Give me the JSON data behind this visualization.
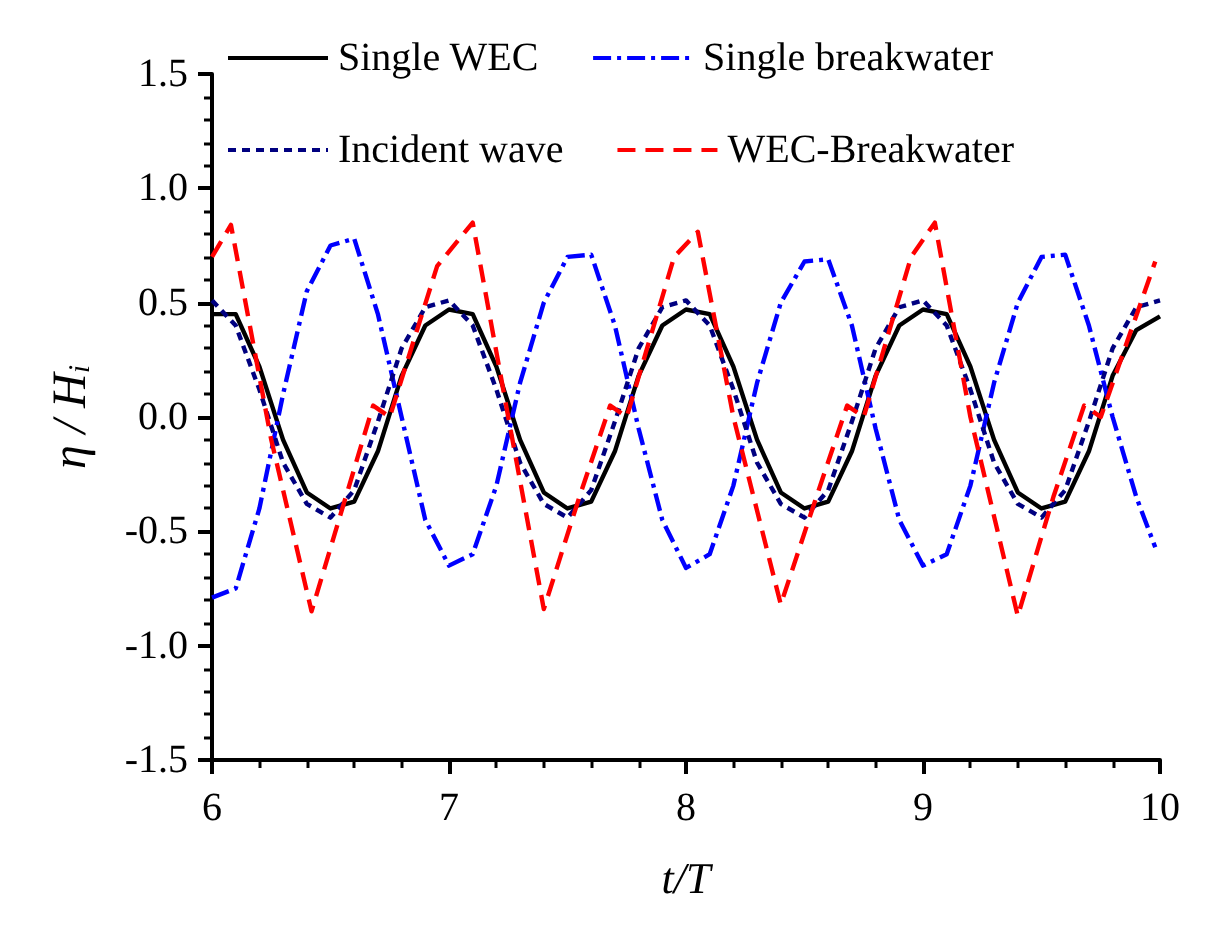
{
  "chart_data": {
    "type": "line",
    "xlabel": "t/T",
    "ylabel": "η / H$_{i}$",
    "xlim": [
      6,
      10
    ],
    "xticks": [
      6,
      7,
      8,
      9,
      10
    ],
    "ylim": [
      -1.5,
      1.5
    ],
    "yticks": [
      -1.5,
      {
        "value": -1,
        "label": "-1.0"
      },
      -0.5,
      {
        "value": 0,
        "label": "0.0"
      },
      0.5,
      {
        "value": 1,
        "label": "1.0"
      },
      1.5
    ],
    "grid": false,
    "legend": "top",
    "marker": "none",
    "series": [
      {
        "name": "Single WEC",
        "color": "#000000",
        "line_style": "solid",
        "x": [
          6.0,
          6.1,
          6.2,
          6.3,
          6.4,
          6.5,
          6.6,
          6.7,
          6.8,
          6.9,
          7.0,
          7.1,
          7.2,
          7.3,
          7.4,
          7.5,
          7.6,
          7.7,
          7.8,
          7.9,
          8.0,
          8.1,
          8.2,
          8.3,
          8.4,
          8.5,
          8.6,
          8.7,
          8.8,
          8.9,
          9.0,
          9.1,
          9.2,
          9.3,
          9.4,
          9.5,
          9.6,
          9.7,
          9.8,
          9.9,
          10.0
        ],
        "values": [
          0.45,
          0.45,
          0.22,
          -0.1,
          -0.33,
          -0.4,
          -0.37,
          -0.15,
          0.18,
          0.4,
          0.47,
          0.45,
          0.22,
          -0.1,
          -0.33,
          -0.4,
          -0.37,
          -0.15,
          0.18,
          0.4,
          0.47,
          0.45,
          0.22,
          -0.1,
          -0.33,
          -0.4,
          -0.37,
          -0.15,
          0.18,
          0.4,
          0.47,
          0.45,
          0.22,
          -0.1,
          -0.33,
          -0.4,
          -0.37,
          -0.15,
          0.18,
          0.38,
          0.44
        ]
      },
      {
        "name": "Single breakwater",
        "color": "#0000ff",
        "line_style": "dashdot",
        "x": [
          6.0,
          6.1,
          6.2,
          6.3,
          6.4,
          6.5,
          6.6,
          6.7,
          6.8,
          6.9,
          7.0,
          7.1,
          7.2,
          7.3,
          7.4,
          7.5,
          7.6,
          7.7,
          7.8,
          7.9,
          8.0,
          8.1,
          8.2,
          8.3,
          8.4,
          8.5,
          8.6,
          8.7,
          8.8,
          8.9,
          9.0,
          9.1,
          9.2,
          9.3,
          9.4,
          9.5,
          9.6,
          9.7,
          9.8,
          9.9,
          9.98
        ],
        "values": [
          -0.79,
          -0.75,
          -0.4,
          0.1,
          0.55,
          0.75,
          0.78,
          0.45,
          0.0,
          -0.45,
          -0.65,
          -0.6,
          -0.3,
          0.15,
          0.5,
          0.7,
          0.71,
          0.4,
          -0.05,
          -0.45,
          -0.66,
          -0.6,
          -0.3,
          0.15,
          0.5,
          0.68,
          0.69,
          0.4,
          -0.05,
          -0.45,
          -0.65,
          -0.6,
          -0.3,
          0.15,
          0.5,
          0.7,
          0.71,
          0.4,
          0.0,
          -0.35,
          -0.57
        ]
      },
      {
        "name": "Incident wave",
        "color": "#000080",
        "line_style": "dotted",
        "x": [
          6.0,
          6.1,
          6.2,
          6.3,
          6.4,
          6.5,
          6.6,
          6.7,
          6.8,
          6.9,
          7.0,
          7.1,
          7.2,
          7.3,
          7.4,
          7.5,
          7.6,
          7.7,
          7.8,
          7.9,
          8.0,
          8.1,
          8.2,
          8.3,
          8.4,
          8.5,
          8.6,
          8.7,
          8.8,
          8.9,
          9.0,
          9.1,
          9.2,
          9.3,
          9.4,
          9.5,
          9.6,
          9.7,
          9.8,
          9.9,
          10.0
        ],
        "values": [
          0.51,
          0.4,
          0.12,
          -0.2,
          -0.38,
          -0.44,
          -0.32,
          -0.02,
          0.3,
          0.48,
          0.51,
          0.4,
          0.12,
          -0.2,
          -0.38,
          -0.44,
          -0.32,
          -0.02,
          0.3,
          0.48,
          0.51,
          0.4,
          0.12,
          -0.2,
          -0.38,
          -0.44,
          -0.32,
          -0.02,
          0.3,
          0.48,
          0.51,
          0.4,
          0.12,
          -0.2,
          -0.38,
          -0.44,
          -0.32,
          -0.02,
          0.3,
          0.48,
          0.51
        ]
      },
      {
        "name": "WEC-Breakwater",
        "color": "#ff0000",
        "line_style": "dashed",
        "x": [
          6.0,
          6.08,
          6.25,
          6.42,
          6.55,
          6.68,
          6.75,
          6.95,
          7.1,
          7.25,
          7.4,
          7.55,
          7.68,
          7.75,
          7.95,
          8.05,
          8.2,
          8.4,
          8.55,
          8.68,
          8.75,
          8.95,
          9.05,
          9.2,
          9.4,
          9.55,
          9.68,
          9.75,
          9.98
        ],
        "values": [
          0.7,
          0.84,
          -0.1,
          -0.85,
          -0.4,
          0.05,
          0.0,
          0.66,
          0.85,
          0.0,
          -0.84,
          -0.35,
          0.05,
          0.0,
          0.7,
          0.81,
          0.0,
          -0.82,
          -0.35,
          0.05,
          0.0,
          0.7,
          0.85,
          0.0,
          -0.87,
          -0.35,
          0.05,
          0.0,
          0.68
        ]
      }
    ]
  }
}
